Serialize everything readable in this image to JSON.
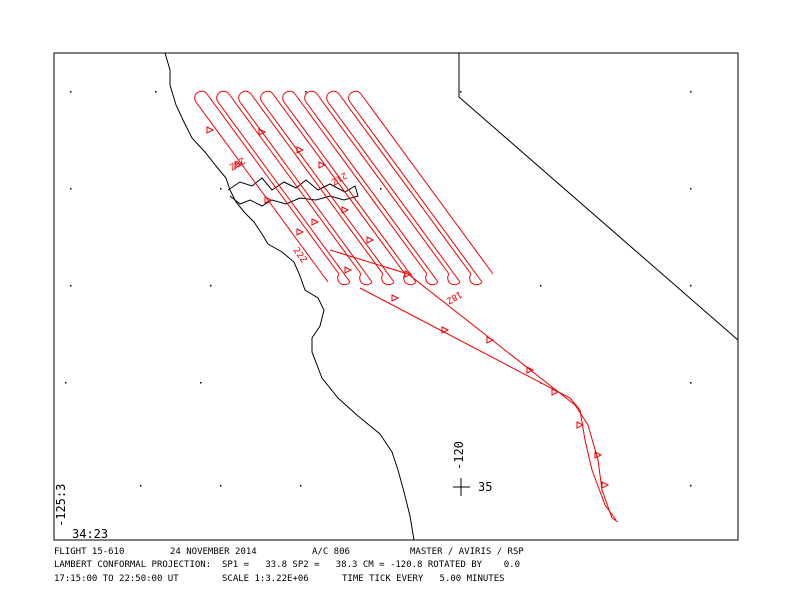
{
  "map": {
    "corner_labels": {
      "longitude": "-125:3",
      "latitude": "34:23"
    },
    "reference": {
      "longitude": "-120",
      "latitude": "35"
    },
    "time_labels": [
      "20Z",
      "21Z",
      "22Z",
      "18Z"
    ],
    "footer": {
      "flight": "FLIGHT 15-610",
      "date": "24 NOVEMBER 2014",
      "aircraft": "A/C 806",
      "instruments": "MASTER / AVIRIS / RSP",
      "projection": "LAMBERT CONFORMAL PROJECTION:  SP1 =   33.8 SP2 =   38.3 CM = -120.8 ROTATED BY    0.0",
      "time_range": "17:15:00 TO 22:50:00 UT",
      "scale": "SCALE 1:3.22E+06",
      "time_tick": "TIME TICK EVERY   5.00 MINUTES"
    }
  }
}
